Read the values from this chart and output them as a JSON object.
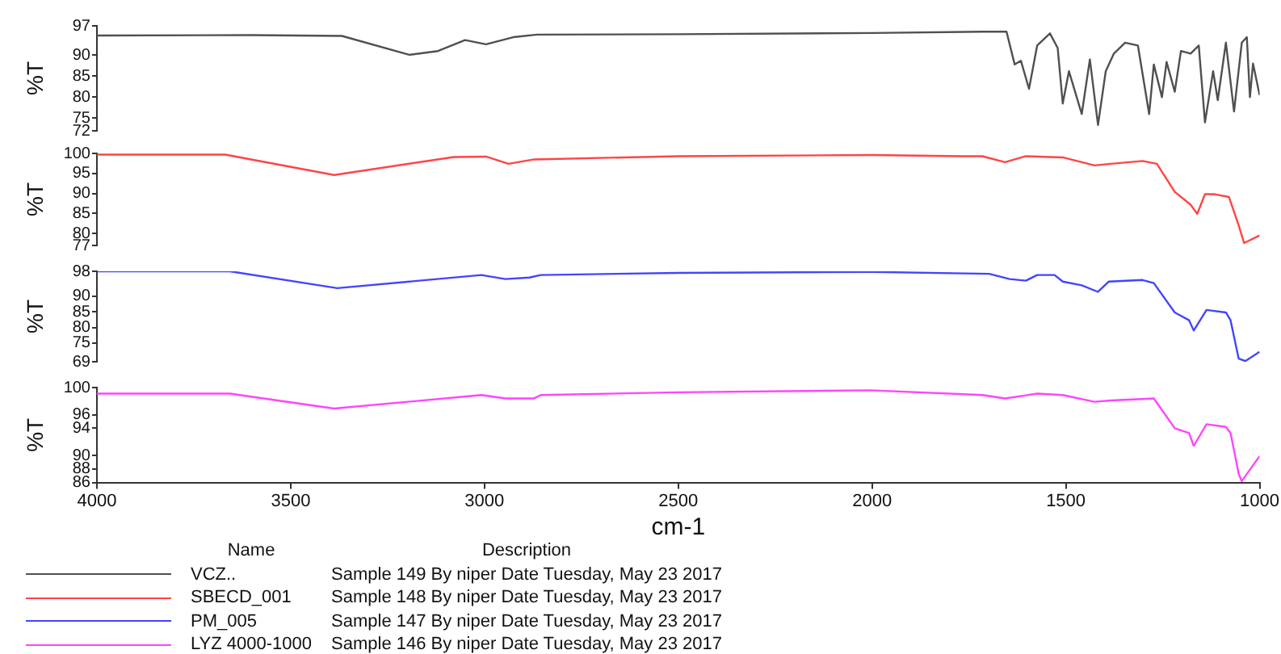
{
  "chart_data": [
    {
      "type": "line",
      "xlim": [
        4000,
        1000
      ],
      "tick_labels": "y",
      "ylabel": "%T",
      "ylim": [
        72,
        97
      ],
      "yticks": [
        97,
        90,
        85,
        80,
        75,
        72
      ],
      "marker": "none",
      "legend": "bottom",
      "legend_title": "Name",
      "annotations": [
        "Description",
        "Sample 149 By niper Date Tuesday, May 23 2017"
      ],
      "series": [
        {
          "name": "VCZ..",
          "color": "#505050",
          "x": [
            4000,
            3600,
            3368,
            3194,
            3120,
            3050,
            2996,
            2926,
            2864,
            2500,
            2000,
            1715,
            1653,
            1632,
            1616,
            1595,
            1574,
            1541,
            1521,
            1508,
            1492,
            1459,
            1438,
            1417,
            1397,
            1376,
            1347,
            1314,
            1285,
            1273,
            1252,
            1240,
            1219,
            1203,
            1178,
            1157,
            1141,
            1120,
            1108,
            1087,
            1066,
            1046,
            1033,
            1025,
            1017,
            1000
          ],
          "values": [
            94.7,
            94.8,
            94.6,
            90.1,
            91.0,
            93.6,
            92.6,
            94.3,
            94.9,
            95.0,
            95.3,
            95.6,
            95.6,
            87.8,
            88.7,
            82.0,
            92.3,
            95.2,
            91.7,
            78.5,
            86.2,
            76.0,
            89.0,
            73.4,
            86.2,
            90.4,
            93.0,
            92.3,
            76.0,
            87.8,
            80.0,
            88.4,
            81.3,
            91.0,
            90.4,
            92.3,
            74.0,
            86.2,
            79.3,
            93.0,
            76.6,
            93.0,
            94.3,
            80.0,
            88.0,
            80.5
          ]
        }
      ]
    },
    {
      "type": "line",
      "xlim": [
        4000,
        1000
      ],
      "tick_labels": "y",
      "ylabel": "%T",
      "ylim": [
        77,
        100
      ],
      "yticks": [
        100,
        95,
        90,
        85,
        80,
        77
      ],
      "marker": "none",
      "legend": "bottom",
      "annotations": [
        "Sample 148 By niper Date Tuesday, May 23 2017"
      ],
      "series": [
        {
          "name": "SBECD_001",
          "color": "#ff4444",
          "x": [
            4000,
            3669,
            3388,
            3079,
            2996,
            2938,
            2872,
            2500,
            2000,
            1769,
            1715,
            1657,
            1603,
            1508,
            1426,
            1384,
            1302,
            1265,
            1219,
            1178,
            1161,
            1141,
            1116,
            1079,
            1054,
            1040,
            1000
          ],
          "values": [
            99.7,
            99.7,
            94.6,
            99.1,
            99.2,
            97.4,
            98.5,
            99.3,
            99.6,
            99.3,
            99.3,
            97.8,
            99.3,
            99.0,
            97.0,
            97.4,
            98.1,
            97.4,
            90.4,
            87.2,
            84.9,
            89.8,
            89.8,
            89.1,
            82.0,
            77.6,
            79.5
          ]
        }
      ]
    },
    {
      "type": "line",
      "xlim": [
        4000,
        1000
      ],
      "tick_labels": "y",
      "ylabel": "%T",
      "ylim": [
        69,
        98
      ],
      "yticks": [
        98,
        90,
        85,
        80,
        75,
        69
      ],
      "marker": "none",
      "legend": "bottom",
      "annotations": [
        "Sample 147 By niper Date Tuesday, May 23 2017"
      ],
      "series": [
        {
          "name": "PM_005",
          "color": "#4444ff",
          "x": [
            4000,
            3657,
            3380,
            3008,
            2946,
            2884,
            2855,
            2500,
            2000,
            1698,
            1645,
            1603,
            1574,
            1529,
            1508,
            1459,
            1417,
            1389,
            1302,
            1273,
            1219,
            1182,
            1170,
            1137,
            1087,
            1075,
            1054,
            1037,
            1000
          ],
          "values": [
            98.0,
            98.0,
            92.6,
            96.8,
            95.5,
            96.0,
            96.8,
            97.5,
            97.8,
            97.2,
            95.5,
            95.0,
            96.8,
            96.8,
            94.7,
            93.5,
            91.4,
            94.7,
            95.2,
            94.2,
            84.8,
            82.3,
            79.0,
            85.6,
            84.8,
            82.3,
            70.0,
            69.2,
            72.2
          ]
        }
      ]
    },
    {
      "type": "line",
      "xlabel": "cm-1",
      "xlim": [
        4000,
        1000
      ],
      "xticks": [
        4000,
        3500,
        3000,
        2500,
        2000,
        1500,
        1000
      ],
      "ylabel": "%T",
      "ylim": [
        86,
        100
      ],
      "yticks": [
        100,
        96,
        94,
        90,
        88,
        86
      ],
      "marker": "none",
      "legend": "bottom",
      "annotations": [
        "Sample 146 By niper Date Tuesday, May 23 2017"
      ],
      "series": [
        {
          "name": "LYZ 4000-1000",
          "color": "#ff44ff",
          "x": [
            4000,
            3657,
            3388,
            3008,
            2946,
            2872,
            2855,
            2500,
            2004,
            1715,
            1657,
            1574,
            1508,
            1426,
            1384,
            1273,
            1219,
            1182,
            1170,
            1137,
            1087,
            1075,
            1054,
            1046,
            1000
          ],
          "values": [
            99.1,
            99.1,
            96.9,
            98.9,
            98.4,
            98.4,
            98.9,
            99.3,
            99.6,
            98.9,
            98.4,
            99.1,
            98.9,
            97.9,
            98.1,
            98.4,
            94.0,
            93.3,
            91.4,
            94.6,
            94.2,
            93.3,
            87.3,
            86.2,
            89.9
          ]
        }
      ]
    }
  ]
}
